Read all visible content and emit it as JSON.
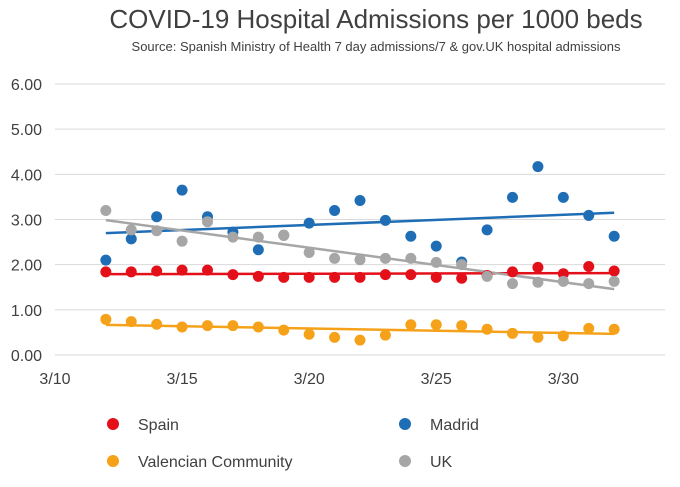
{
  "chart_data": {
    "type": "scatter",
    "title": "COVID-19 Hospital Admissions per 1000 beds",
    "subtitle": "Source: Spanish Ministry of Health 7 day admissions/7 & gov.UK hospital admissions",
    "xlabel": "",
    "ylabel": "",
    "x_ticks": [
      "3/10",
      "3/15",
      "3/20",
      "3/25",
      "3/30"
    ],
    "y_ticks": [
      "0.00",
      "1.00",
      "2.00",
      "3.00",
      "4.00",
      "5.00",
      "6.00"
    ],
    "ylim": [
      0,
      6
    ],
    "xlim": [
      "3/10",
      "4/3"
    ],
    "grid": "horizontal",
    "legend_position": "bottom",
    "trendlines": "linear",
    "x": [
      "3/12",
      "3/13",
      "3/14",
      "3/15",
      "3/16",
      "3/17",
      "3/18",
      "3/19",
      "3/20",
      "3/21",
      "3/22",
      "3/23",
      "3/24",
      "3/25",
      "3/26",
      "3/27",
      "3/28",
      "3/29",
      "3/30",
      "3/31",
      "4/1"
    ],
    "series": [
      {
        "name": "Spain",
        "color": "#e3101a",
        "values": [
          1.84,
          1.84,
          1.86,
          1.88,
          1.88,
          1.78,
          1.74,
          1.72,
          1.72,
          1.72,
          1.72,
          1.78,
          1.78,
          1.72,
          1.7,
          1.76,
          1.84,
          1.94,
          1.8,
          1.96,
          1.86
        ]
      },
      {
        "name": "Madrid",
        "color": "#1f6eb5",
        "values": [
          2.1,
          2.57,
          3.06,
          3.65,
          3.06,
          2.72,
          2.33,
          2.65,
          2.92,
          3.2,
          3.42,
          2.98,
          2.63,
          2.41,
          2.06,
          2.77,
          3.49,
          4.17,
          3.49,
          3.09,
          2.63
        ]
      },
      {
        "name": "Valencian Community",
        "color": "#f5a21a",
        "values": [
          0.79,
          0.74,
          0.68,
          0.62,
          0.65,
          0.65,
          0.62,
          0.55,
          0.46,
          0.39,
          0.33,
          0.44,
          0.67,
          0.67,
          0.65,
          0.57,
          0.48,
          0.39,
          0.42,
          0.59,
          0.57
        ]
      },
      {
        "name": "UK",
        "color": "#a6a6a6",
        "values": [
          3.2,
          2.77,
          2.75,
          2.52,
          2.95,
          2.61,
          2.61,
          2.65,
          2.27,
          2.14,
          2.11,
          2.14,
          2.14,
          2.05,
          2.0,
          1.74,
          1.58,
          1.61,
          1.63,
          1.58,
          1.63
        ]
      }
    ],
    "legend": [
      {
        "name": "Spain",
        "color": "#e3101a"
      },
      {
        "name": "Madrid",
        "color": "#1f6eb5"
      },
      {
        "name": "Valencian Community",
        "color": "#f5a21a"
      },
      {
        "name": "UK",
        "color": "#a6a6a6"
      }
    ]
  }
}
